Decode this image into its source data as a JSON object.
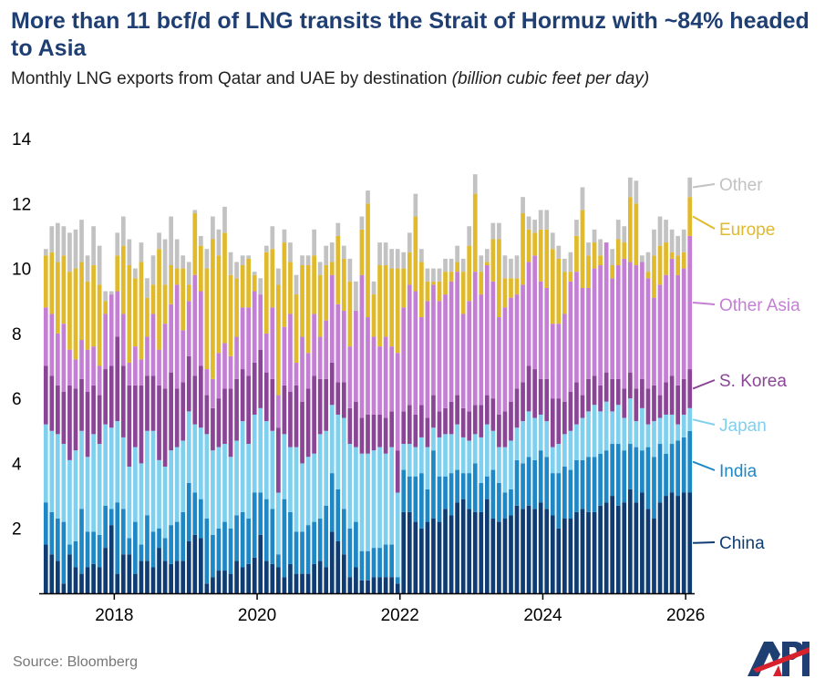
{
  "title": "More than 11 bcf/d of LNG transits the Strait of Hormuz with ~84% headed to Asia",
  "subtitle": "Monthly LNG exports from Qatar and UAE by destination",
  "subtitle_unit": "(billion cubic feet per day)",
  "source": "Source: Bloomberg",
  "logo_text": "API",
  "chart_data": {
    "type": "bar",
    "stacked": true,
    "ylim": [
      0,
      14
    ],
    "yticks": [
      2,
      4,
      6,
      8,
      10,
      12,
      14
    ],
    "xticks": [
      {
        "label": "2018",
        "x": 2018.0
      },
      {
        "label": "2020",
        "x": 2020.0
      },
      {
        "label": "2022",
        "x": 2022.0
      },
      {
        "label": "2024",
        "x": 2024.0
      },
      {
        "label": "2026",
        "x": 2026.0
      }
    ],
    "xrange": [
      2017.0,
      2026.1
    ],
    "period": "monthly",
    "start": "2017-01",
    "end": "2026-01",
    "grid": false,
    "legend_position": "right, inline labels",
    "series": [
      {
        "name": "China",
        "color": "#0f3d73"
      },
      {
        "name": "India",
        "color": "#1e88c7"
      },
      {
        "name": "Japan",
        "color": "#7fd0ef"
      },
      {
        "name": "S. Korea",
        "color": "#8b4597"
      },
      {
        "name": "Other Asia",
        "color": "#c47fd5"
      },
      {
        "name": "Europe",
        "color": "#e0b92c"
      },
      {
        "name": "Other",
        "color": "#c2c2c2"
      }
    ],
    "totals": [
      10.6,
      11.3,
      11.4,
      11.3,
      11.1,
      11.2,
      11.5,
      10.4,
      11.3,
      10.7,
      9.3,
      9.3,
      11.1,
      11.6,
      10.9,
      10.0,
      10.8,
      9.7,
      10.4,
      11.1,
      10.9,
      11.6,
      10.9,
      10.4,
      10.2,
      11.8,
      11.0,
      10.6,
      11.6,
      11.2,
      11.9,
      10.5,
      10.2,
      10.4,
      10.4,
      9.9,
      9.7,
      10.7,
      11.3,
      10.0,
      11.2,
      10.8,
      9.8,
      10.4,
      10.4,
      11.2,
      10.2,
      10.7,
      10.8,
      11.4,
      10.7,
      10.3,
      9.6,
      11.6,
      12.4,
      9.6,
      10.8,
      10.8,
      10.6,
      10.6,
      10.5,
      11.1,
      12.3,
      10.6,
      10.0,
      10.0,
      10.0,
      10.3,
      10.3,
      10.7,
      10.3,
      11.3,
      12.9,
      10.4,
      10.6,
      11.4,
      11.4,
      10.4,
      10.3,
      10.4,
      12.2,
      11.6,
      11.5,
      11.8,
      11.8,
      11.1,
      10.7,
      10.3,
      10.5,
      11.5,
      12.5,
      10.8,
      11.2,
      10.9,
      10.1,
      10.6,
      11.5,
      11.3,
      12.8,
      12.7,
      10.4,
      10.5,
      11.2,
      11.6,
      11.5,
      11.2,
      11.0,
      11.2,
      12.8
    ],
    "china": [
      1.5,
      1.2,
      1.0,
      0.3,
      1.2,
      0.8,
      0.6,
      0.8,
      0.9,
      0.8,
      1.4,
      2.1,
      0.6,
      1.2,
      1.2,
      0.6,
      1.0,
      1.0,
      0.8,
      1.4,
      1.0,
      0.9,
      1.0,
      1.0,
      1.6,
      1.8,
      1.7,
      0.3,
      0.5,
      0.7,
      0.7,
      0.6,
      1.0,
      0.8,
      0.9,
      1.1,
      1.8,
      1.0,
      0.9,
      0.8,
      0.5,
      0.9,
      0.6,
      0.6,
      0.6,
      0.9,
      1.0,
      0.8,
      1.9,
      1.6,
      1.2,
      0.5,
      0.8,
      0.4,
      0.4,
      0.5,
      0.5,
      0.5,
      0.5,
      0.3,
      2.5,
      2.5,
      2.2,
      2.0,
      2.2,
      2.3,
      2.2,
      2.6,
      2.4,
      2.8,
      2.9,
      2.6,
      2.5,
      2.5,
      2.9,
      2.3,
      2.2,
      2.3,
      2.4,
      2.7,
      2.6,
      2.7,
      2.6,
      2.8,
      2.6,
      2.4,
      2.0,
      2.3,
      2.3,
      2.5,
      2.6,
      2.5,
      2.5,
      2.7,
      2.8,
      3.0,
      2.7,
      2.8,
      3.2,
      2.8,
      3.1,
      2.6,
      2.3,
      2.8,
      3.0,
      3.1,
      3.0,
      3.1,
      3.1
    ],
    "india": [
      2.8,
      2.5,
      2.3,
      2.2,
      1.5,
      1.6,
      2.6,
      1.9,
      1.9,
      1.8,
      2.7,
      2.6,
      2.8,
      2.6,
      1.7,
      2.2,
      1.5,
      2.4,
      1.9,
      2.0,
      1.7,
      2.1,
      2.2,
      2.5,
      3.4,
      3.1,
      2.9,
      2.3,
      1.8,
      2.0,
      2.2,
      2.0,
      2.4,
      2.5,
      2.3,
      3.1,
      3.1,
      2.9,
      2.6,
      1.2,
      2.9,
      2.5,
      1.9,
      1.9,
      2.1,
      2.2,
      2.3,
      2.7,
      3.7,
      3.2,
      2.6,
      2.0,
      2.2,
      1.3,
      1.3,
      1.4,
      1.4,
      1.5,
      1.5,
      0.5,
      3.8,
      3.6,
      3.6,
      3.7,
      3.2,
      4.4,
      3.6,
      3.6,
      3.7,
      3.8,
      3.7,
      3.7,
      4.0,
      3.4,
      3.6,
      3.8,
      3.4,
      3.1,
      3.2,
      4.1,
      4.0,
      4.2,
      4.1,
      4.4,
      4.2,
      3.7,
      3.7,
      3.9,
      3.8,
      4.1,
      4.1,
      4.2,
      4.2,
      4.3,
      4.4,
      4.6,
      4.6,
      4.4,
      4.6,
      4.5,
      4.4,
      4.5,
      4.2,
      4.6,
      4.3,
      4.6,
      4.7,
      4.8,
      5.0
    ],
    "japan": [
      5.2,
      5.0,
      4.9,
      4.6,
      4.1,
      4.4,
      5.0,
      4.2,
      4.9,
      4.6,
      5.2,
      5.1,
      5.3,
      4.8,
      3.9,
      4.5,
      4.0,
      5.0,
      5.0,
      4.1,
      3.9,
      4.4,
      4.5,
      4.7,
      5.6,
      5.2,
      5.1,
      4.9,
      4.4,
      4.5,
      4.6,
      4.2,
      4.7,
      5.3,
      4.6,
      5.5,
      5.7,
      5.3,
      5.0,
      3.1,
      4.9,
      4.5,
      4.5,
      4.0,
      4.2,
      4.3,
      4.9,
      5.0,
      5.8,
      5.5,
      5.4,
      4.6,
      4.5,
      4.3,
      4.3,
      4.4,
      4.5,
      4.3,
      4.5,
      3.1,
      4.6,
      4.6,
      4.5,
      4.8,
      4.5,
      5.1,
      4.8,
      4.9,
      4.9,
      5.2,
      4.8,
      4.7,
      4.9,
      4.8,
      5.2,
      5.0,
      4.5,
      4.5,
      4.7,
      5.1,
      5.3,
      5.6,
      5.4,
      5.5,
      5.3,
      4.5,
      4.6,
      4.9,
      5.0,
      5.2,
      5.4,
      5.6,
      5.8,
      5.6,
      5.9,
      5.6,
      5.8,
      5.4,
      6.0,
      5.3,
      5.7,
      5.2,
      5.3,
      5.4,
      5.5,
      5.5,
      5.2,
      5.5,
      5.7
    ],
    "korea": [
      7.0,
      6.7,
      6.4,
      6.2,
      6.4,
      6.3,
      6.6,
      6.2,
      6.4,
      6.1,
      6.9,
      7.0,
      7.9,
      7.0,
      6.4,
      6.4,
      6.4,
      6.7,
      6.7,
      6.4,
      6.3,
      6.8,
      6.3,
      6.5,
      7.3,
      6.7,
      7.0,
      6.1,
      5.7,
      6.0,
      6.3,
      6.3,
      6.6,
      6.9,
      6.7,
      7.1,
      7.5,
      6.8,
      6.6,
      5.1,
      6.4,
      6.2,
      6.4,
      5.9,
      6.3,
      6.7,
      6.6,
      6.6,
      7.1,
      6.5,
      6.5,
      5.7,
      5.9,
      5.4,
      5.5,
      5.5,
      5.5,
      5.4,
      5.6,
      4.4,
      5.6,
      5.8,
      5.5,
      5.8,
      5.4,
      6.1,
      5.6,
      5.7,
      5.9,
      6.1,
      5.7,
      5.6,
      5.8,
      5.8,
      6.1,
      6.0,
      5.5,
      5.6,
      5.9,
      6.3,
      6.5,
      7.0,
      6.9,
      6.6,
      6.6,
      6.0,
      6.0,
      5.9,
      6.2,
      6.5,
      6.1,
      6.6,
      6.7,
      6.4,
      6.8,
      6.6,
      6.6,
      6.3,
      6.8,
      6.3,
      6.6,
      6.3,
      6.4,
      6.1,
      6.5,
      6.7,
      6.4,
      6.6,
      6.9
    ],
    "other_asia": [
      8.8,
      8.6,
      8.0,
      8.3,
      7.5,
      7.2,
      7.8,
      7.5,
      7.6,
      7.0,
      8.6,
      9.2,
      9.3,
      8.6,
      7.1,
      7.6,
      7.2,
      7.9,
      8.6,
      7.5,
      8.3,
      8.9,
      9.5,
      8.1,
      9.0,
      9.8,
      9.3,
      6.9,
      6.6,
      7.4,
      7.7,
      7.3,
      7.9,
      8.8,
      8.8,
      9.3,
      9.2,
      8.0,
      8.8,
      6.1,
      8.2,
      8.6,
      7.1,
      7.9,
      7.4,
      8.6,
      7.9,
      8.4,
      9.8,
      8.9,
      8.7,
      7.6,
      8.7,
      9.8,
      8.5,
      7.9,
      7.6,
      7.9,
      7.6,
      7.4,
      8.8,
      9.5,
      9.3,
      8.5,
      9.0,
      9.5,
      9.0,
      9.2,
      9.6,
      9.9,
      8.6,
      9.0,
      9.9,
      9.2,
      10.1,
      9.6,
      8.5,
      8.8,
      9.1,
      9.2,
      9.5,
      10.2,
      10.4,
      9.6,
      9.4,
      8.3,
      8.3,
      8.6,
      9.6,
      9.9,
      9.4,
      9.4,
      10.0,
      10.1,
      10.8,
      9.7,
      10.1,
      10.3,
      10.2,
      10.1,
      10.2,
      9.7,
      9.1,
      9.5,
      9.8,
      10.3,
      9.8,
      10.0,
      11.0
    ],
    "europe": [
      10.4,
      10.5,
      10.2,
      10.4,
      9.9,
      10.0,
      10.2,
      9.6,
      10.1,
      9.5,
      9.0,
      9.2,
      10.4,
      10.7,
      10.1,
      9.7,
      10.2,
      9.1,
      9.5,
      10.6,
      9.5,
      10.1,
      10.0,
      10.0,
      9.5,
      11.7,
      10.7,
      10.0,
      10.9,
      10.4,
      11.1,
      9.8,
      9.7,
      10.1,
      10.3,
      9.8,
      9.2,
      10.5,
      10.6,
      9.5,
      10.8,
      10.2,
      9.2,
      10.1,
      10.1,
      10.4,
      9.8,
      10.1,
      10.2,
      11.0,
      10.3,
      9.6,
      8.6,
      11.2,
      12.0,
      9.2,
      10.1,
      10.1,
      10.0,
      10.0,
      10.0,
      10.5,
      11.6,
      10.2,
      9.6,
      9.6,
      9.6,
      9.9,
      9.9,
      10.2,
      9.9,
      10.7,
      12.3,
      9.9,
      10.2,
      10.9,
      10.9,
      9.7,
      9.7,
      9.7,
      11.7,
      11.2,
      11.1,
      11.2,
      11.2,
      10.6,
      10.3,
      9.9,
      9.9,
      11.0,
      11.8,
      10.4,
      10.8,
      10.4,
      9.7,
      10.1,
      10.9,
      10.8,
      12.2,
      12.0,
      9.9,
      9.9,
      10.4,
      10.7,
      10.8,
      10.5,
      10.4,
      10.5,
      12.2
    ]
  }
}
